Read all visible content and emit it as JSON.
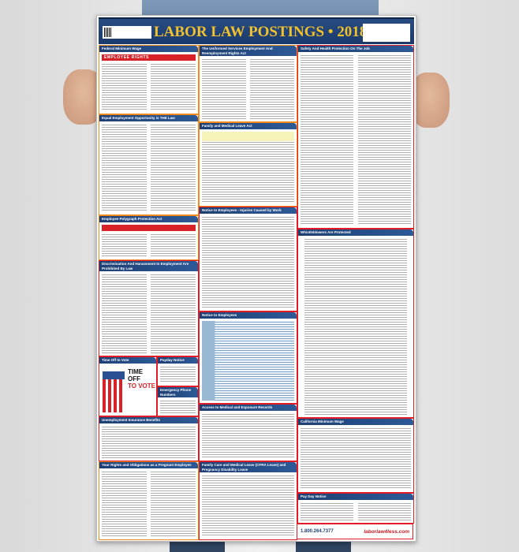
{
  "poster": {
    "title": "LABOR LAW POSTINGS • 2018",
    "sections": {
      "federal_min_wage": "Federal Minimum Wage",
      "employee_rights": "EMPLOYEE RIGHTS",
      "userra": "The Uniformed Services Employment And Reemployment Rights Act",
      "safety": "Safety And Health Protection On The Job",
      "eeo": "Equal Employment Opportunity is THE Law",
      "fmla": "Family and Medical Leave Act",
      "polygraph": "Employee Polygraph Protection Act",
      "injuries": "Notice to Employees - Injuries Caused by Work",
      "discrimination": "Discrimination And Harassment In Employment Are Prohibited By Law",
      "whistleblowers": "Whistleblowers Are Protected",
      "notice": "Notice to Employees",
      "time_off_vote": "Time Off to Vote",
      "vote_line1": "TIME OFF",
      "vote_line2": "TO VOTE",
      "payday_notice": "Payday Notice",
      "emergency": "Emergency Phone Numbers",
      "medical_records": "Access to Medical and Exposure Records",
      "unemployment": "Unemployment Insurance Benefits",
      "ca_min_wage": "California Minimum Wage",
      "pregnant": "Your Rights and Obligations as a Pregnant Employee",
      "cfra": "Family Care and Medical Leave (CFRA Leave) and Pregnancy Disability Leave",
      "pay_day": "Pay Day Notice"
    },
    "footer": {
      "phone": "1.800.264.7377",
      "brand": "laborlaw4less.com"
    }
  }
}
